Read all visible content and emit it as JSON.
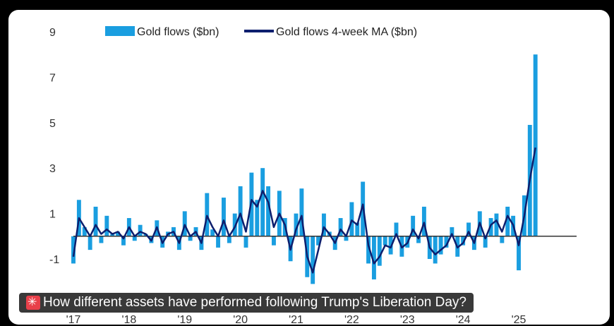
{
  "caption": {
    "text": "How different assets have performed following Trump's Liberation Day?",
    "icon": "siren-icon"
  },
  "chart_data": {
    "type": "bar",
    "title": "",
    "legend_position": "top",
    "ylim": [
      -2.2,
      9.6
    ],
    "y_ticks": [
      9,
      7,
      5,
      3,
      1,
      -1
    ],
    "y_tick_labels": [
      "9",
      "7",
      "5",
      "3",
      "1",
      "-1"
    ],
    "x_ticks": [
      2017,
      2018,
      2019,
      2020,
      2021,
      2022,
      2023,
      2024,
      2025
    ],
    "x_tick_labels": [
      "'17",
      "'18",
      "'19",
      "'20",
      "'21",
      "'22",
      "'23",
      "'24",
      "'25"
    ],
    "colors": {
      "bars": "#1a9ee0",
      "line": "#0d1f6e",
      "zero": "#333333"
    },
    "series": [
      {
        "name": "Gold flows ($bn)",
        "type": "bar",
        "x": [
          2017.0,
          2017.1,
          2017.2,
          2017.3,
          2017.4,
          2017.5,
          2017.6,
          2017.7,
          2017.8,
          2017.9,
          2018.0,
          2018.1,
          2018.2,
          2018.3,
          2018.4,
          2018.5,
          2018.6,
          2018.7,
          2018.8,
          2018.9,
          2019.0,
          2019.1,
          2019.2,
          2019.3,
          2019.4,
          2019.5,
          2019.6,
          2019.7,
          2019.8,
          2019.9,
          2020.0,
          2020.1,
          2020.2,
          2020.3,
          2020.4,
          2020.5,
          2020.6,
          2020.7,
          2020.8,
          2020.9,
          2021.0,
          2021.1,
          2021.2,
          2021.3,
          2021.4,
          2021.5,
          2021.6,
          2021.7,
          2021.8,
          2021.9,
          2022.0,
          2022.1,
          2022.2,
          2022.3,
          2022.4,
          2022.5,
          2022.6,
          2022.7,
          2022.8,
          2022.9,
          2023.0,
          2023.1,
          2023.2,
          2023.3,
          2023.4,
          2023.5,
          2023.6,
          2023.7,
          2023.8,
          2023.9,
          2024.0,
          2024.1,
          2024.2,
          2024.3,
          2024.4,
          2024.5,
          2024.6,
          2024.7,
          2024.8,
          2024.9,
          2025.0,
          2025.1,
          2025.2,
          2025.3
        ],
        "values": [
          -1.2,
          1.6,
          0.4,
          -0.6,
          1.3,
          -0.3,
          0.9,
          0.1,
          0.2,
          -0.4,
          0.8,
          -0.2,
          0.5,
          0.1,
          -0.3,
          0.7,
          -0.5,
          0.2,
          0.4,
          -0.6,
          1.1,
          -0.2,
          0.4,
          -0.6,
          1.9,
          0.3,
          -0.5,
          1.7,
          -0.3,
          1.0,
          2.2,
          -0.5,
          2.8,
          1.6,
          3.0,
          2.2,
          -0.4,
          2.0,
          0.8,
          -1.1,
          1.0,
          2.1,
          -1.8,
          -2.1,
          -0.4,
          1.0,
          0.2,
          -0.6,
          0.8,
          -0.2,
          1.5,
          0.6,
          2.4,
          -1.2,
          -1.9,
          -1.3,
          -0.4,
          -0.8,
          0.6,
          -0.9,
          -0.5,
          0.9,
          -0.3,
          1.3,
          -1.0,
          -1.2,
          -0.8,
          -0.5,
          0.4,
          -0.9,
          -0.4,
          0.6,
          -0.6,
          1.1,
          -0.5,
          0.8,
          1.0,
          -0.3,
          1.3,
          0.9,
          -1.5,
          1.8,
          4.9,
          8.0
        ]
      },
      {
        "name": "Gold flows 4-week MA ($bn)",
        "type": "line",
        "x": [
          2017.0,
          2017.1,
          2017.2,
          2017.3,
          2017.4,
          2017.5,
          2017.6,
          2017.7,
          2017.8,
          2017.9,
          2018.0,
          2018.1,
          2018.2,
          2018.3,
          2018.4,
          2018.5,
          2018.6,
          2018.7,
          2018.8,
          2018.9,
          2019.0,
          2019.1,
          2019.2,
          2019.3,
          2019.4,
          2019.5,
          2019.6,
          2019.7,
          2019.8,
          2019.9,
          2020.0,
          2020.1,
          2020.2,
          2020.3,
          2020.4,
          2020.5,
          2020.6,
          2020.7,
          2020.8,
          2020.9,
          2021.0,
          2021.1,
          2021.2,
          2021.3,
          2021.4,
          2021.5,
          2021.6,
          2021.7,
          2021.8,
          2021.9,
          2022.0,
          2022.1,
          2022.2,
          2022.3,
          2022.4,
          2022.5,
          2022.6,
          2022.7,
          2022.8,
          2022.9,
          2023.0,
          2023.1,
          2023.2,
          2023.3,
          2023.4,
          2023.5,
          2023.6,
          2023.7,
          2023.8,
          2023.9,
          2024.0,
          2024.1,
          2024.2,
          2024.3,
          2024.4,
          2024.5,
          2024.6,
          2024.7,
          2024.8,
          2024.9,
          2025.0,
          2025.1,
          2025.2,
          2025.3
        ],
        "values": [
          -0.9,
          0.8,
          0.4,
          0.0,
          0.5,
          0.1,
          0.3,
          0.1,
          0.2,
          -0.1,
          0.4,
          0.0,
          0.2,
          0.1,
          -0.2,
          0.4,
          -0.3,
          0.1,
          0.2,
          -0.3,
          0.5,
          0.0,
          0.2,
          -0.3,
          0.9,
          0.4,
          0.0,
          0.7,
          0.0,
          0.4,
          1.0,
          0.2,
          1.6,
          1.3,
          2.0,
          1.5,
          0.4,
          1.0,
          0.5,
          -0.6,
          0.3,
          0.9,
          -0.9,
          -1.6,
          -0.6,
          0.4,
          0.1,
          -0.3,
          0.3,
          0.0,
          0.7,
          0.5,
          1.4,
          -0.4,
          -1.2,
          -0.9,
          -0.4,
          -0.5,
          0.1,
          -0.5,
          -0.3,
          0.3,
          -0.1,
          0.6,
          -0.5,
          -0.8,
          -0.6,
          -0.4,
          0.1,
          -0.5,
          -0.3,
          0.2,
          -0.3,
          0.6,
          -0.1,
          0.5,
          0.7,
          0.2,
          0.9,
          0.5,
          -0.4,
          0.9,
          2.5,
          3.9
        ]
      }
    ]
  }
}
